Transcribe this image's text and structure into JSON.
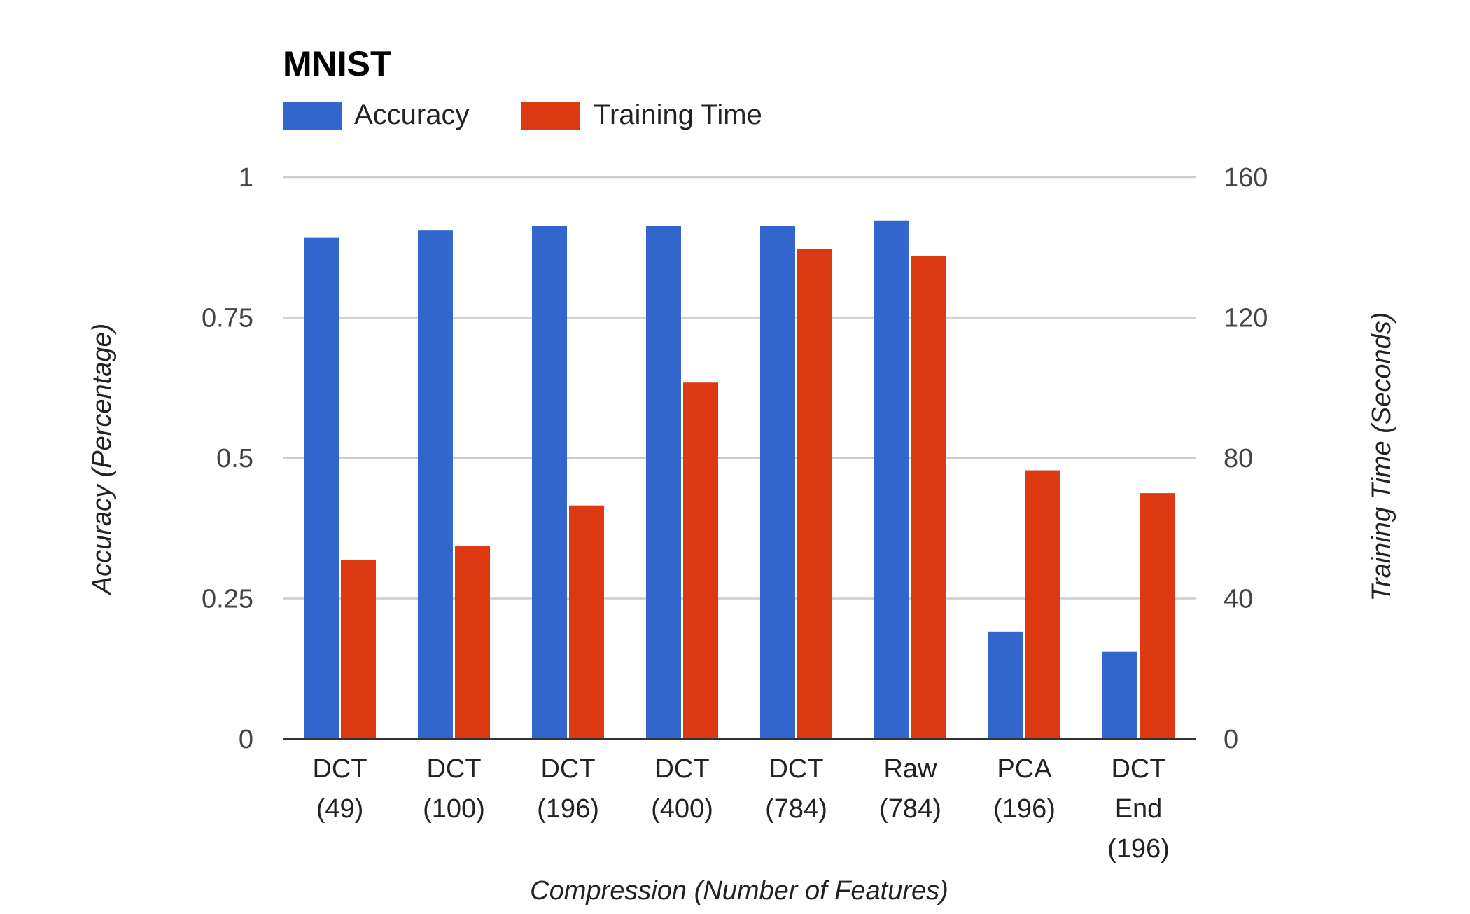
{
  "chart_data": {
    "type": "bar",
    "title": "MNIST",
    "categories": [
      [
        "DCT",
        "(49)"
      ],
      [
        "DCT",
        "(100)"
      ],
      [
        "DCT",
        "(196)"
      ],
      [
        "DCT",
        "(400)"
      ],
      [
        "DCT",
        "(784)"
      ],
      [
        "Raw",
        "(784)"
      ],
      [
        "PCA",
        "(196)"
      ],
      [
        "DCT",
        "End",
        "(196)"
      ]
    ],
    "series": [
      {
        "name": "Accuracy",
        "axis": "left",
        "color": "#3366cc",
        "values": [
          0.892,
          0.905,
          0.914,
          0.914,
          0.914,
          0.923,
          0.191,
          0.155
        ]
      },
      {
        "name": "Training Time",
        "axis": "right",
        "color": "#dc3912",
        "values": [
          51,
          55,
          66.5,
          101.5,
          139.5,
          137.5,
          76.5,
          70
        ]
      }
    ],
    "xlabel": "Compression (Number of Features)",
    "ylabel_left": "Accuracy (Percentage)",
    "ylabel_right": "Training Time (Seconds)",
    "ylim_left": [
      0,
      1
    ],
    "ylim_right": [
      0,
      160
    ],
    "yticks_left": [
      "0",
      "0.25",
      "0.5",
      "0.75",
      "1"
    ],
    "yticks_right": [
      "0",
      "40",
      "80",
      "120",
      "160"
    ],
    "grid": true,
    "legend_position": "top-left"
  }
}
